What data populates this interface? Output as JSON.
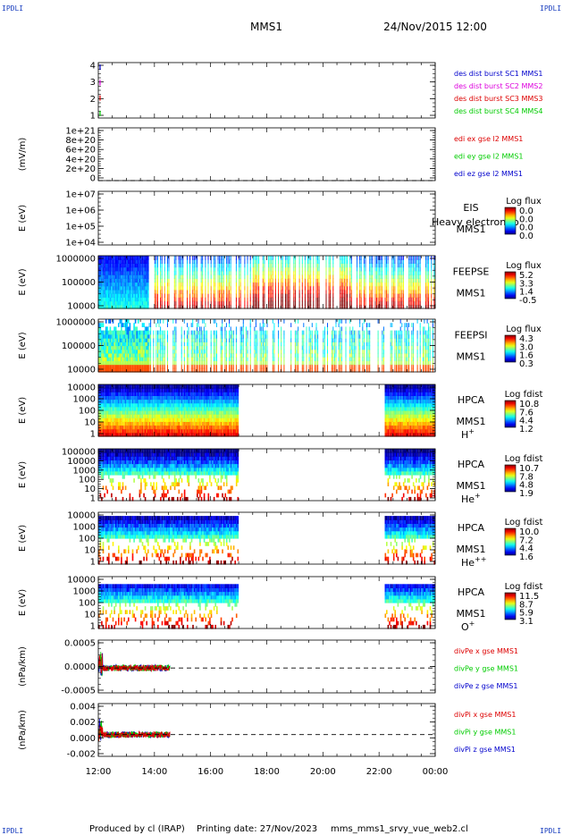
{
  "header": {
    "corner_label": "IPDLI",
    "spacecraft": "MMS1",
    "datetime": "24/Nov/2015 12:00"
  },
  "footer": {
    "produced_by": "Produced by cl (IRAP)",
    "printing_date": "Printing date: 27/Nov/2023",
    "script_name": "mms_mms1_srvy_vue_web2.cl"
  },
  "time_axis": {
    "ticks": [
      "12:00",
      "14:00",
      "16:00",
      "18:00",
      "20:00",
      "22:00",
      "00:00"
    ]
  },
  "colors": {
    "red": "#dd0000",
    "magenta": "#dd00dd",
    "green": "#00cc00",
    "blue": "#0000cc"
  },
  "chart_data": [
    {
      "id": "burst",
      "type": "line",
      "yticks": [
        "4",
        "3",
        "2",
        "1"
      ],
      "ylim": [
        0.7,
        4.3
      ],
      "legend": [
        {
          "label": "des dist burst SC1 MMS1",
          "color": "#0000cc"
        },
        {
          "label": "des dist burst SC2 MMS2",
          "color": "#dd00dd"
        },
        {
          "label": "des dist burst SC3 MMS3",
          "color": "#dd0000"
        },
        {
          "label": "des dist burst SC4 MMS4",
          "color": "#00cc00"
        }
      ]
    },
    {
      "id": "edi",
      "type": "line",
      "ylabel": "(mV/m)",
      "yticks": [
        "1e+21",
        "8e+20",
        "6e+20",
        "4e+20",
        "2e+20",
        "0"
      ],
      "ylim": [
        0,
        1e+21
      ],
      "zero_line": true,
      "legend": [
        {
          "label": "edi ex gse l2 MMS1",
          "color": "#dd0000"
        },
        {
          "label": "edi ey gse l2 MMS1",
          "color": "#00cc00"
        },
        {
          "label": "edi ez gse l2 MMS1",
          "color": "#0000cc"
        }
      ]
    },
    {
      "id": "eis",
      "type": "heatmap",
      "ylabel": "E (eV)",
      "yticks": [
        "1e+07",
        "1e+06",
        "1e+05",
        "1e+04"
      ],
      "ylim": [
        10000,
        10000000
      ],
      "side_labels": [
        "EIS",
        "MMS1"
      ],
      "overlay_text": "Heavy electron to",
      "colorbar": {
        "title": "Log flux",
        "labels": [
          "0.0",
          "0.0",
          "0.0",
          "0.0"
        ]
      }
    },
    {
      "id": "feepse",
      "type": "heatmap",
      "ylabel": "E (eV)",
      "yticks": [
        "1000000",
        "100000",
        "10000"
      ],
      "ylim": [
        10000,
        1000000
      ],
      "side_labels": [
        "FEEPSE",
        "MMS1"
      ],
      "colorbar": {
        "title": "Log flux",
        "labels": [
          "5.2",
          "3.3",
          "1.4",
          "-0.5"
        ]
      },
      "coverage": [
        [
          12.0,
          24.0
        ]
      ]
    },
    {
      "id": "feepsi",
      "type": "heatmap",
      "ylabel": "E (eV)",
      "yticks": [
        "1000000",
        "100000",
        "10000"
      ],
      "ylim": [
        10000,
        1000000
      ],
      "side_labels": [
        "FEEPSI",
        "MMS1"
      ],
      "colorbar": {
        "title": "Log flux",
        "labels": [
          "4.3",
          "3.0",
          "1.6",
          "0.3"
        ]
      },
      "coverage": [
        [
          12.0,
          24.0
        ]
      ]
    },
    {
      "id": "hpca_h",
      "type": "heatmap",
      "ylabel": "E (eV)",
      "yticks": [
        "10000",
        "1000",
        "100",
        "10",
        "1"
      ],
      "ylim": [
        1,
        30000
      ],
      "side_labels": [
        "HPCA",
        "MMS1"
      ],
      "species": "H",
      "species_sup": "+",
      "colorbar": {
        "title": "Log fdist",
        "labels": [
          "10.8",
          "7.6",
          "4.4",
          "1.2"
        ]
      },
      "coverage": [
        [
          12.0,
          17.0
        ],
        [
          22.2,
          24.0
        ]
      ]
    },
    {
      "id": "hpca_he",
      "type": "heatmap",
      "ylabel": "E (eV)",
      "yticks": [
        "100000",
        "10000",
        "1000",
        "100",
        "10",
        "1"
      ],
      "ylim": [
        1,
        100000
      ],
      "side_labels": [
        "HPCA",
        "MMS1"
      ],
      "species": "He",
      "species_sup": "+",
      "colorbar": {
        "title": "Log fdist",
        "labels": [
          "10.7",
          "7.8",
          "4.8",
          "1.9"
        ]
      },
      "coverage": [
        [
          12.0,
          17.0
        ],
        [
          22.2,
          24.0
        ]
      ]
    },
    {
      "id": "hpca_hepp",
      "type": "heatmap",
      "ylabel": "E (eV)",
      "yticks": [
        "10000",
        "1000",
        "100",
        "10",
        "1"
      ],
      "ylim": [
        1,
        30000
      ],
      "side_labels": [
        "HPCA",
        "MMS1"
      ],
      "species": "He",
      "species_sup": "++",
      "colorbar": {
        "title": "Log fdist",
        "labels": [
          "10.0",
          "7.2",
          "4.4",
          "1.6"
        ]
      },
      "coverage": [
        [
          12.0,
          17.0
        ],
        [
          22.2,
          24.0
        ]
      ]
    },
    {
      "id": "hpca_o",
      "type": "heatmap",
      "ylabel": "E (eV)",
      "yticks": [
        "10000",
        "1000",
        "100",
        "10",
        "1"
      ],
      "ylim": [
        1,
        30000
      ],
      "side_labels": [
        "HPCA",
        "MMS1"
      ],
      "species": "O",
      "species_sup": "+",
      "colorbar": {
        "title": "Log fdist",
        "labels": [
          "11.5",
          "8.7",
          "5.9",
          "3.1"
        ]
      },
      "coverage": [
        [
          12.0,
          17.0
        ],
        [
          22.2,
          24.0
        ]
      ]
    },
    {
      "id": "divpe",
      "type": "line",
      "ylabel": "(nPa/km)",
      "yticks": [
        "0.0005",
        "0.0000",
        "-0.0005"
      ],
      "ylim": [
        -0.0008,
        0.0009
      ],
      "zero_line": true,
      "coverage": [
        [
          12.0,
          14.55
        ]
      ],
      "legend": [
        {
          "label": "divPe x gse MMS1",
          "color": "#dd0000"
        },
        {
          "label": "divPe y gse MMS1",
          "color": "#00cc00"
        },
        {
          "label": "divPe z gse MMS1",
          "color": "#0000cc"
        }
      ]
    },
    {
      "id": "divpi",
      "type": "line",
      "ylabel": "(nPa/km)",
      "yticks": [
        "0.004",
        "0.002",
        "0.000",
        "-0.002"
      ],
      "ylim": [
        -0.0035,
        0.005
      ],
      "zero_line": true,
      "coverage": [
        [
          12.0,
          14.55
        ]
      ],
      "legend": [
        {
          "label": "divPi x gse MMS1",
          "color": "#dd0000"
        },
        {
          "label": "divPi y gse MMS1",
          "color": "#00cc00"
        },
        {
          "label": "divPi z gse MMS1",
          "color": "#0000cc"
        }
      ]
    }
  ]
}
